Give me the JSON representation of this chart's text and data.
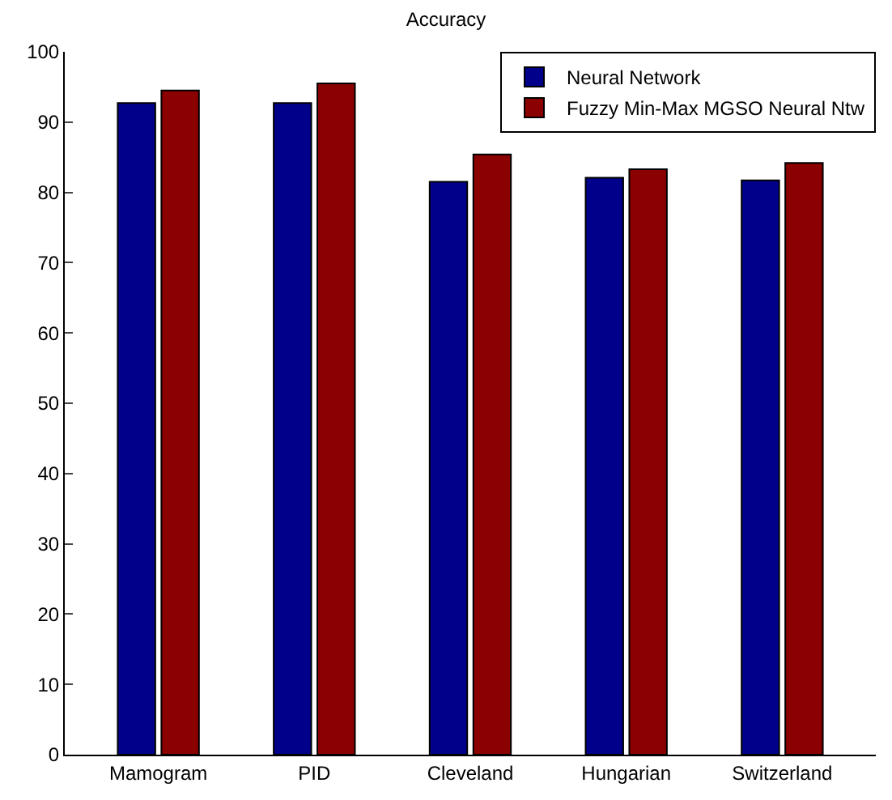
{
  "chart_data": {
    "type": "bar",
    "title": "Accuracy",
    "categories": [
      "Mamogram",
      "PID",
      "Cleveland",
      "Hungarian",
      "Switzerland"
    ],
    "series": [
      {
        "name": "Neural Network",
        "color": "#00008b",
        "values": [
          92.7,
          92.7,
          81.5,
          82.1,
          81.7
        ]
      },
      {
        "name": "Fuzzy Min-Max MGSO Neural Ntw",
        "color": "#8b0000",
        "values": [
          94.5,
          95.5,
          85.4,
          83.3,
          84.2
        ]
      }
    ],
    "ylim": [
      0,
      100
    ],
    "yticks": [
      0,
      10,
      20,
      30,
      40,
      50,
      60,
      70,
      80,
      90,
      100
    ],
    "grid": false,
    "legend": "top right"
  }
}
